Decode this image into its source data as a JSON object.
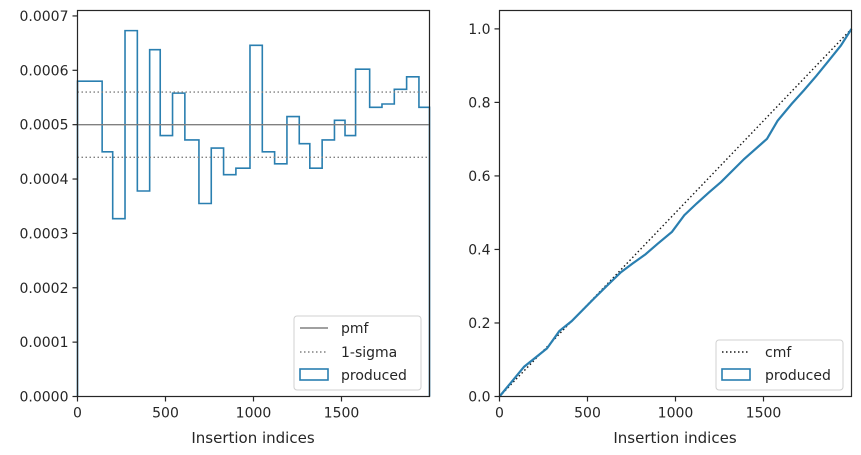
{
  "colors": {
    "produced": "#2a7fb0",
    "pmf": "#808080",
    "sigma": "#808080",
    "cmf": "#1a1a1a",
    "axis": "#262626"
  },
  "chart_data": [
    {
      "type": "line",
      "title": "",
      "xlabel": "Insertion indices",
      "ylabel": "",
      "xlim": [
        0,
        2000
      ],
      "ylim": [
        0,
        0.00071
      ],
      "x_ticks": [
        0,
        500,
        1000,
        1500
      ],
      "x_tick_labels": [
        "0",
        "500",
        "1000",
        "1500"
      ],
      "y_ticks": [
        0,
        0.0001,
        0.0002,
        0.0003,
        0.0004,
        0.0005,
        0.0006,
        0.0007
      ],
      "y_tick_labels": [
        "0.0000",
        "0.0001",
        "0.0002",
        "0.0003",
        "0.0004",
        "0.0005",
        "0.0006",
        "0.0007"
      ],
      "grid": false,
      "legend_position": "lower-right",
      "series": [
        {
          "name": "produced",
          "kind": "step-histogram",
          "bin_edges": [
            0,
            140,
            200,
            270,
            340,
            410,
            470,
            540,
            610,
            690,
            760,
            830,
            900,
            980,
            1050,
            1120,
            1190,
            1260,
            1320,
            1390,
            1460,
            1520,
            1580,
            1660,
            1730,
            1800,
            1870,
            1940,
            2000
          ],
          "values": [
            0.00058,
            0.00045,
            0.000327,
            0.000673,
            0.000378,
            0.000638,
            0.00048,
            0.000558,
            0.000472,
            0.000355,
            0.000457,
            0.000408,
            0.00042,
            0.000646,
            0.00045,
            0.000428,
            0.000515,
            0.000465,
            0.00042,
            0.000472,
            0.000508,
            0.00048,
            0.000602,
            0.000532,
            0.000538,
            0.000565,
            0.000588,
            0.000532
          ]
        },
        {
          "name": "pmf",
          "kind": "hline",
          "y": 0.0005
        },
        {
          "name": "1-sigma",
          "kind": "hlines",
          "y": [
            0.00044,
            0.00056
          ]
        }
      ]
    },
    {
      "type": "line",
      "title": "",
      "xlabel": "Insertion indices",
      "ylabel": "",
      "xlim": [
        0,
        2000
      ],
      "ylim": [
        0,
        1.05
      ],
      "x_ticks": [
        0,
        500,
        1000,
        1500
      ],
      "x_tick_labels": [
        "0",
        "500",
        "1000",
        "1500"
      ],
      "y_ticks": [
        0,
        0.2,
        0.4,
        0.6,
        0.8,
        1.0
      ],
      "y_tick_labels": [
        "0.0",
        "0.2",
        "0.4",
        "0.6",
        "0.8",
        "1.0"
      ],
      "grid": false,
      "legend_position": "lower-right",
      "series": [
        {
          "name": "cmf",
          "kind": "line",
          "x": [
            0,
            2000
          ],
          "y": [
            0,
            1.0
          ]
        },
        {
          "name": "produced",
          "kind": "step-cumulative",
          "x": [
            0,
            140,
            270,
            340,
            410,
            540,
            610,
            690,
            760,
            830,
            900,
            980,
            1050,
            1120,
            1190,
            1260,
            1390,
            1520,
            1580,
            1660,
            1730,
            1800,
            1870,
            1940,
            2000
          ],
          "y": [
            0,
            0.081,
            0.131,
            0.178,
            0.205,
            0.268,
            0.301,
            0.338,
            0.363,
            0.387,
            0.416,
            0.448,
            0.493,
            0.525,
            0.555,
            0.584,
            0.646,
            0.701,
            0.75,
            0.796,
            0.833,
            0.872,
            0.913,
            0.955,
            1.0
          ]
        }
      ]
    }
  ],
  "legends": {
    "left": [
      {
        "label": "pmf",
        "style": "solid-line"
      },
      {
        "label": "1-sigma",
        "style": "dotted-line"
      },
      {
        "label": "produced",
        "style": "box"
      }
    ],
    "right": [
      {
        "label": "cmf",
        "style": "dotted-line"
      },
      {
        "label": "produced",
        "style": "box"
      }
    ]
  }
}
